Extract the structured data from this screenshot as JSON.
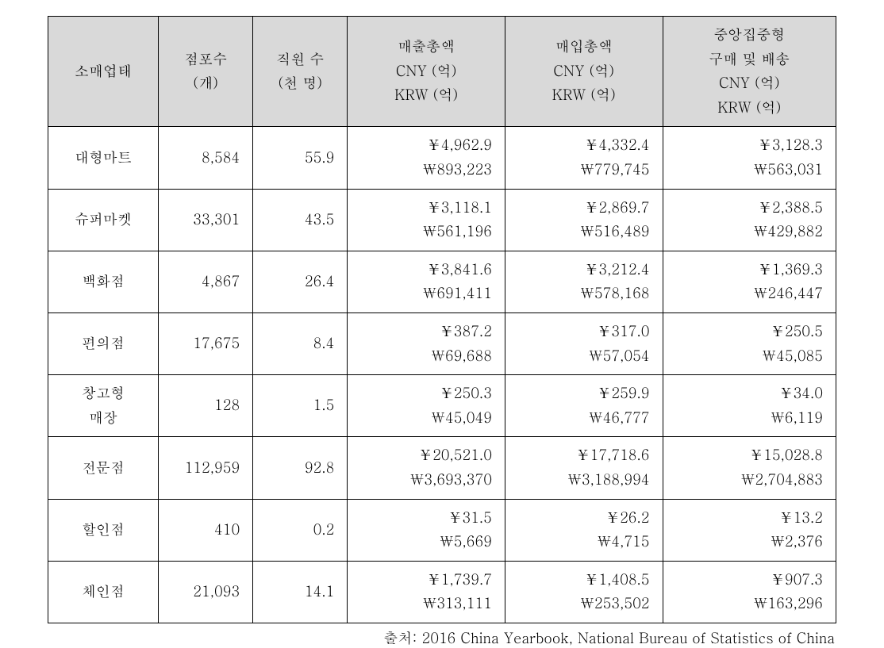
{
  "table": {
    "columns": [
      {
        "lines": [
          "소매업태"
        ]
      },
      {
        "lines": [
          "점포수",
          "(개)"
        ]
      },
      {
        "lines": [
          "직원 수",
          "(천 명)"
        ]
      },
      {
        "lines": [
          "매출총액",
          "CNY (억)",
          "KRW (억)"
        ]
      },
      {
        "lines": [
          "매입총액",
          "CNY (억)",
          "KRW (억)"
        ]
      },
      {
        "lines": [
          "중앙집중형",
          "구매 및 배송",
          "CNY (억)",
          "KRW (억)"
        ]
      }
    ],
    "col_widths_pct": [
      14,
      12,
      12,
      20,
      20,
      22
    ],
    "header_bg": "#d9d9d9",
    "border_color": "#000000",
    "font_size_pt": 14,
    "rows": [
      {
        "label": "대형마트",
        "stores": "8,584",
        "employees": "55.9",
        "sales": {
          "cny": "￥4,962.9",
          "krw": "￦893,223"
        },
        "purchases": {
          "cny": "￥4,332.4",
          "krw": "￦779,745"
        },
        "centralized": {
          "cny": "￥3,128.3",
          "krw": "￦563,031"
        }
      },
      {
        "label": "슈퍼마켓",
        "stores": "33,301",
        "employees": "43.5",
        "sales": {
          "cny": "￥3,118.1",
          "krw": "￦561,196"
        },
        "purchases": {
          "cny": "￥2,869.7",
          "krw": "￦516,489"
        },
        "centralized": {
          "cny": "￥2,388.5",
          "krw": "￦429,882"
        }
      },
      {
        "label": "백화점",
        "stores": "4,867",
        "employees": "26.4",
        "sales": {
          "cny": "￥3,841.6",
          "krw": "￦691,411"
        },
        "purchases": {
          "cny": "￥3,212.4",
          "krw": "￦578,168"
        },
        "centralized": {
          "cny": "￥1,369.3",
          "krw": "￦246,447"
        }
      },
      {
        "label": "편의점",
        "stores": "17,675",
        "employees": "8.4",
        "sales": {
          "cny": "￥387.2",
          "krw": "￦69,688"
        },
        "purchases": {
          "cny": "￥317.0",
          "krw": "￦57,054"
        },
        "centralized": {
          "cny": "￥250.5",
          "krw": "￦45,085"
        }
      },
      {
        "label": "창고형\n매장",
        "stores": "128",
        "employees": "1.5",
        "sales": {
          "cny": "￥250.3",
          "krw": "￦45,049"
        },
        "purchases": {
          "cny": "￥259.9",
          "krw": "￦46,777"
        },
        "centralized": {
          "cny": "￥34.0",
          "krw": "￦6,119"
        }
      },
      {
        "label": "전문점",
        "stores": "112,959",
        "employees": "92.8",
        "sales": {
          "cny": "￥20,521.0",
          "krw": "￦3,693,370"
        },
        "purchases": {
          "cny": "￥17,718.6",
          "krw": "￦3,188,994"
        },
        "centralized": {
          "cny": "￥15,028.8",
          "krw": "￦2,704,883"
        }
      },
      {
        "label": "할인점",
        "stores": "410",
        "employees": "0.2",
        "sales": {
          "cny": "￥31.5",
          "krw": "￦5,669"
        },
        "purchases": {
          "cny": "￥26.2",
          "krw": "￦4,715"
        },
        "centralized": {
          "cny": "￥13.2",
          "krw": "￦2,376"
        }
      },
      {
        "label": "체인점",
        "stores": "21,093",
        "employees": "14.1",
        "sales": {
          "cny": "￥1,739.7",
          "krw": "￦313,111"
        },
        "purchases": {
          "cny": "￥1,408.5",
          "krw": "￦253,502"
        },
        "centralized": {
          "cny": "￥907.3",
          "krw": "￦163,296"
        }
      }
    ]
  },
  "source": "출처: 2016 China Yearbook, National Bureau of Statistics of China"
}
